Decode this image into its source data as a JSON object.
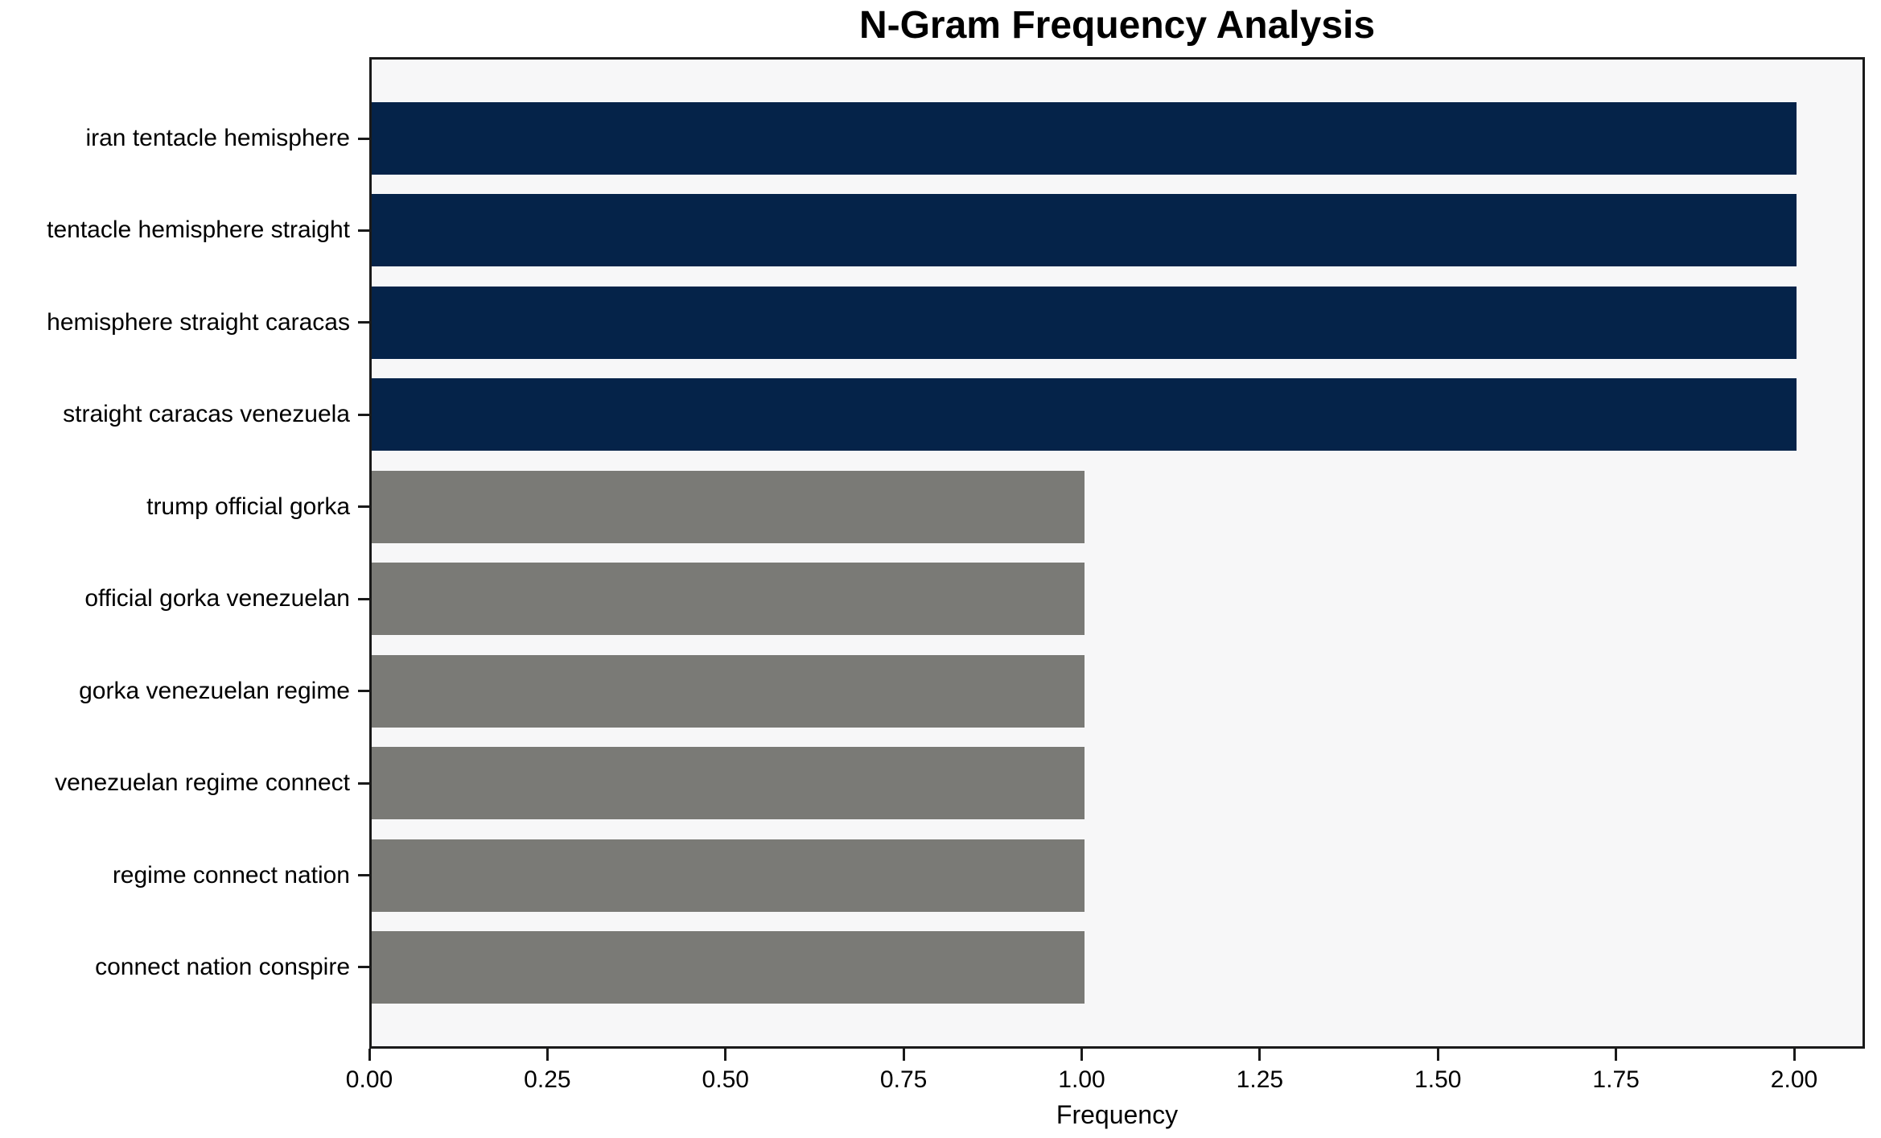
{
  "chart_data": {
    "type": "bar",
    "orientation": "horizontal",
    "title": "N-Gram Frequency Analysis",
    "xlabel": "Frequency",
    "ylabel": "",
    "categories": [
      "iran tentacle hemisphere",
      "tentacle hemisphere straight",
      "hemisphere straight caracas",
      "straight caracas venezuela",
      "trump official gorka",
      "official gorka venezuelan",
      "gorka venezuelan regime",
      "venezuelan regime connect",
      "regime connect nation",
      "connect nation conspire"
    ],
    "values": [
      2,
      2,
      2,
      2,
      1,
      1,
      1,
      1,
      1,
      1
    ],
    "bar_colors": [
      "#052349",
      "#052349",
      "#052349",
      "#052349",
      "#7a7a76",
      "#7a7a76",
      "#7a7a76",
      "#7a7a76",
      "#7a7a76",
      "#7a7a76"
    ],
    "xlim": [
      0,
      2.1
    ],
    "xticks": [
      {
        "value": 0.0,
        "label": "0.00"
      },
      {
        "value": 0.25,
        "label": "0.25"
      },
      {
        "value": 0.5,
        "label": "0.50"
      },
      {
        "value": 0.75,
        "label": "0.75"
      },
      {
        "value": 1.0,
        "label": "1.00"
      },
      {
        "value": 1.25,
        "label": "1.25"
      },
      {
        "value": 1.5,
        "label": "1.50"
      },
      {
        "value": 1.75,
        "label": "1.75"
      },
      {
        "value": 2.0,
        "label": "2.00"
      }
    ],
    "grid": false,
    "legend": null
  },
  "colors": {
    "bar_high_freq": "#052349",
    "bar_low_freq": "#7a7a76",
    "plot_background": "#f7f7f8",
    "figure_background": "#ffffff",
    "spine": "#1a1a1a",
    "text": "#000000"
  }
}
